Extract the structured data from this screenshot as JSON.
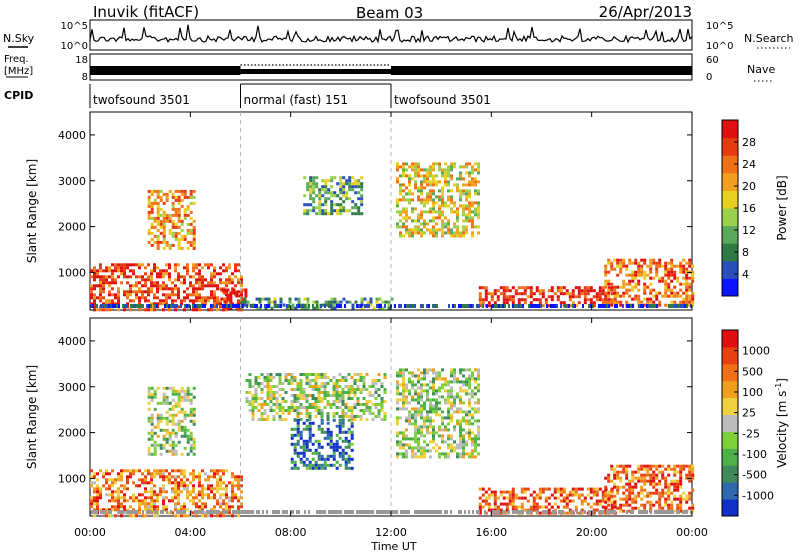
{
  "header": {
    "station": "Inuvik (fitACF)",
    "beam": "Beam 03",
    "date": "26/Apr/2013"
  },
  "top_labels": {
    "nsky": "N.Sky",
    "nsky_ticks": [
      "10^5",
      "10^0"
    ],
    "freq_line1": "Freq.",
    "freq_line2": "[MHz]",
    "freq_ticks": [
      "18",
      "8"
    ],
    "nsearch": "N.Search",
    "nsearch_ticks": [
      "10^5",
      "10^0"
    ],
    "nave": "Nave",
    "nave_ticks": [
      "60",
      "0"
    ],
    "cpid": "CPID"
  },
  "cpid_segments": [
    {
      "label": "twofsound 3501",
      "start": 0,
      "end": 6
    },
    {
      "label": "normal (fast) 151",
      "start": 6,
      "end": 12
    },
    {
      "label": "twofsound 3501",
      "start": 12,
      "end": 24
    }
  ],
  "chart_data": [
    {
      "type": "heatmap",
      "name": "power",
      "ylabel": "Slant Range [km]",
      "xlim": [
        0,
        24
      ],
      "ylim": [
        180,
        4500
      ],
      "yticks": [
        "1000",
        "2000",
        "3000",
        "4000"
      ],
      "colorbar": {
        "label": "Power [dB]",
        "ticks": [
          "4",
          "8",
          "12",
          "16",
          "20",
          "24",
          "28"
        ],
        "colors": [
          "#0a14ff",
          "#2a4fb8",
          "#2f7a45",
          "#5aa85a",
          "#9bd04a",
          "#e8d020",
          "#f2a020",
          "#f07018",
          "#e83a10",
          "#e01010"
        ]
      },
      "echo_regions": [
        {
          "t0": 0.0,
          "t1": 6.0,
          "r0": 200,
          "r1": 1200,
          "level": 0.85
        },
        {
          "t0": 2.3,
          "t1": 4.2,
          "r0": 1500,
          "r1": 2800,
          "level": 0.65
        },
        {
          "t0": 5.2,
          "t1": 6.2,
          "r0": 250,
          "r1": 650,
          "level": 0.95
        },
        {
          "t0": 6.0,
          "t1": 12.0,
          "r0": 250,
          "r1": 450,
          "level": 0.3
        },
        {
          "t0": 8.5,
          "t1": 10.8,
          "r0": 2300,
          "r1": 3100,
          "level": 0.35
        },
        {
          "t0": 12.2,
          "t1": 15.5,
          "r0": 1800,
          "r1": 3400,
          "level": 0.55
        },
        {
          "t0": 15.5,
          "t1": 21.0,
          "r0": 250,
          "r1": 700,
          "level": 0.9
        },
        {
          "t0": 20.5,
          "t1": 24.0,
          "r0": 300,
          "r1": 1300,
          "level": 0.75
        }
      ]
    },
    {
      "type": "heatmap",
      "name": "velocity",
      "xlabel": "Time UT",
      "xticks": [
        "00:00",
        "04:00",
        "08:00",
        "12:00",
        "16:00",
        "20:00",
        "00:00"
      ],
      "ylabel": "Slant Range [km]",
      "xlim": [
        0,
        24
      ],
      "ylim": [
        180,
        4500
      ],
      "yticks": [
        "1000",
        "2000",
        "3000",
        "4000"
      ],
      "colorbar": {
        "label": "Velocity [m s",
        "label_sup": "-1",
        "label_close": "]",
        "ticks": [
          "1000",
          "500",
          "100",
          "25",
          "-25",
          "-100",
          "-500",
          "-1000"
        ],
        "colors": [
          "#1030c8",
          "#2f6ab0",
          "#3f8a5a",
          "#4fb04a",
          "#7ed03a",
          "#bcbcbc",
          "#f0d040",
          "#f0a020",
          "#f07018",
          "#e84010",
          "#e01010"
        ]
      },
      "echo_regions": [
        {
          "t0": 0.0,
          "t1": 6.0,
          "r0": 200,
          "r1": 1200,
          "level": 0.75
        },
        {
          "t0": 2.3,
          "t1": 4.2,
          "r0": 1500,
          "r1": 3000,
          "level": 0.45
        },
        {
          "t0": 6.2,
          "t1": 11.8,
          "r0": 2300,
          "r1": 3300,
          "level": 0.45
        },
        {
          "t0": 8.0,
          "t1": 10.5,
          "r0": 1200,
          "r1": 2300,
          "level": 0.15
        },
        {
          "t0": 12.2,
          "t1": 15.5,
          "r0": 1500,
          "r1": 3400,
          "level": 0.45
        },
        {
          "t0": 15.5,
          "t1": 21.0,
          "r0": 250,
          "r1": 800,
          "level": 0.82
        },
        {
          "t0": 20.5,
          "t1": 24.0,
          "r0": 300,
          "r1": 1300,
          "level": 0.8
        }
      ]
    }
  ]
}
